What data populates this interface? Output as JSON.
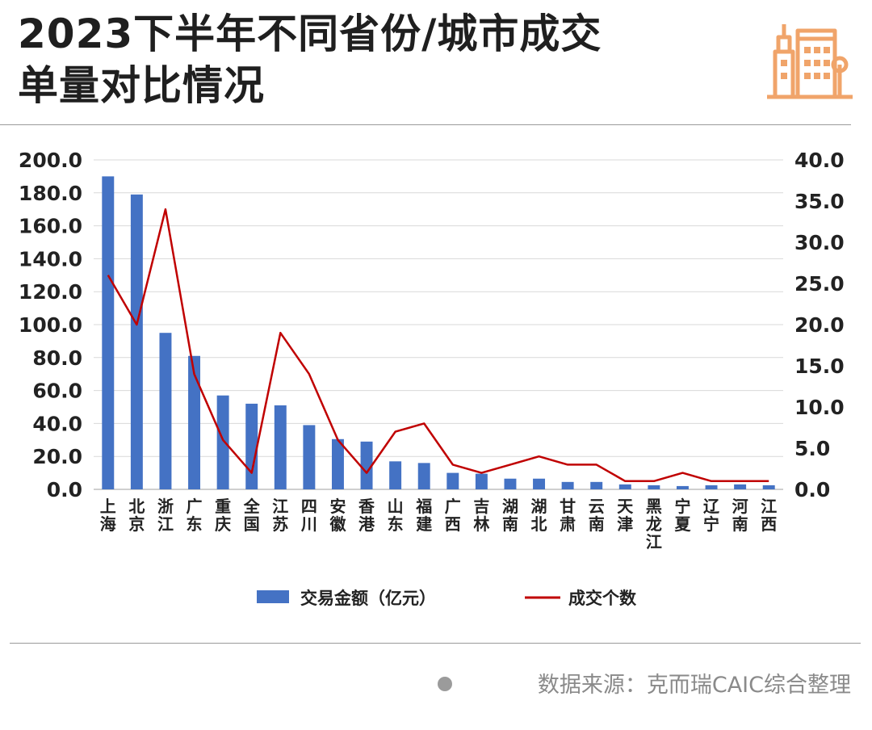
{
  "title_line1": "2023下半年不同省份/城市成交",
  "title_line2": "单量对比情况",
  "source": "数据来源：克而瑞CAIC综合整理",
  "icons": {
    "logo": "city-buildings-icon",
    "footer": "dot-icon"
  },
  "colors": {
    "bar": "#4472C4",
    "line": "#C00000",
    "logo": "#F0A46A",
    "grid": "#D9D9D9"
  },
  "chart_data": {
    "type": "bar",
    "categories": [
      "上海",
      "北京",
      "浙江",
      "广东",
      "重庆",
      "全国",
      "江苏",
      "四川",
      "安徽",
      "香港",
      "山东",
      "福建",
      "广西",
      "吉林",
      "湖南",
      "湖北",
      "甘肃",
      "云南",
      "天津",
      "黑龙江",
      "宁夏",
      "辽宁",
      "河南",
      "江西"
    ],
    "series": [
      {
        "name": "交易金额（亿元）",
        "type": "bar",
        "axis": "left",
        "values": [
          190.0,
          179.0,
          95.0,
          81.0,
          57.0,
          52.0,
          51.0,
          39.0,
          30.5,
          29.0,
          17.0,
          16.0,
          10.0,
          9.5,
          6.5,
          6.5,
          4.5,
          4.5,
          3.0,
          2.5,
          2.0,
          2.5,
          3.0,
          2.5
        ]
      },
      {
        "name": "成交个数",
        "type": "line",
        "axis": "right",
        "values": [
          26,
          20,
          34,
          14,
          6,
          2,
          19,
          14,
          6,
          2,
          7,
          8,
          3,
          2,
          3,
          4,
          3,
          3,
          1,
          1,
          2,
          1,
          1,
          1
        ]
      }
    ],
    "ylim_left": [
      0,
      200
    ],
    "ylim_right": [
      0,
      40
    ],
    "yticks_left": [
      "0.0",
      "20.0",
      "40.0",
      "60.0",
      "80.0",
      "100.0",
      "120.0",
      "140.0",
      "160.0",
      "180.0",
      "200.0"
    ],
    "yticks_right": [
      "0.0",
      "5.0",
      "10.0",
      "15.0",
      "20.0",
      "25.0",
      "30.0",
      "35.0",
      "40.0"
    ],
    "grid": true,
    "legend_position": "bottom"
  }
}
